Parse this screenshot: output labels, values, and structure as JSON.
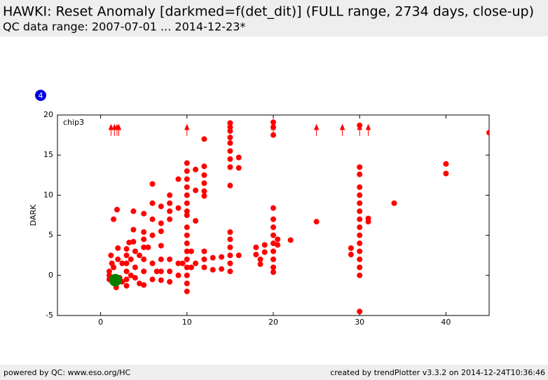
{
  "header": {
    "title": "HAWKI: Reset Anomaly [darkmed=f(det_dit)] (FULL range, 2734 days, close-up)",
    "subtitle": "QC data range: 2007-07-01 ... 2014-12-23*"
  },
  "badge": "4",
  "footer": {
    "left": "powered by QC: www.eso.org/HC",
    "right": "created by trendPlotter v3.3.2 on 2014-12-24T10:36:46"
  },
  "chart_data": {
    "type": "scatter",
    "ylabel": "DARK",
    "annotation": "chip3",
    "xlim": [
      -5,
      45
    ],
    "ylim": [
      -5,
      20
    ],
    "xticks": [
      0,
      10,
      20,
      30,
      40
    ],
    "yticks": [
      -5,
      0,
      5,
      10,
      15,
      20
    ],
    "grid": false,
    "series": [
      {
        "color": "#ff0000",
        "marker": "circle",
        "marker_radius": 4,
        "x": [
          1,
          1,
          1,
          1.2,
          1.3,
          1.5,
          1.5,
          1.8,
          1.9,
          2,
          2,
          2.2,
          2.5,
          2.5,
          3,
          3,
          3,
          3,
          3,
          3,
          3.3,
          3.5,
          3.5,
          3.8,
          3.8,
          3.8,
          4,
          4,
          4,
          4.5,
          4.5,
          5,
          5,
          5,
          5,
          5,
          5,
          5,
          5.5,
          6,
          6,
          6,
          6,
          6,
          6,
          6.5,
          7,
          7,
          7,
          7,
          7,
          7,
          7,
          8,
          8,
          8,
          8,
          8,
          8,
          8,
          9,
          9,
          9,
          9,
          9.5,
          10,
          10,
          10,
          10,
          10,
          10,
          10,
          10,
          10,
          10,
          10,
          10,
          10,
          10,
          10,
          10,
          10,
          10.5,
          10.5,
          11,
          11,
          11,
          11,
          12,
          12,
          12,
          12,
          12,
          12,
          12,
          12,
          12,
          13,
          13,
          14,
          14,
          15,
          15,
          15,
          15,
          15,
          15,
          15,
          15,
          15,
          15,
          15,
          15,
          15,
          15,
          15,
          16,
          16,
          16,
          18,
          18,
          18.5,
          18.5,
          19,
          19,
          20,
          20,
          20,
          20,
          20,
          20,
          20,
          20,
          20,
          20,
          20,
          20,
          20.5,
          20.5,
          22,
          25,
          29,
          29,
          30,
          30,
          30,
          30,
          30,
          30,
          30,
          30,
          30,
          30,
          30,
          30,
          30,
          30,
          30,
          30,
          31,
          31,
          34,
          40,
          40,
          45
        ],
        "values": [
          -0.5,
          0,
          0.5,
          2.5,
          1.5,
          7,
          1,
          -1.5,
          8.2,
          3.4,
          2,
          -0.3,
          1.5,
          -0.8,
          3.3,
          2.5,
          1.5,
          0.5,
          -0.5,
          -1.3,
          4.1,
          2,
          0,
          8,
          5.7,
          4.2,
          3,
          1,
          -0.3,
          2.5,
          -1,
          7.7,
          5.4,
          4.5,
          3.5,
          2,
          0.5,
          -1.2,
          3.5,
          11.4,
          9,
          7,
          5,
          1.5,
          -0.5,
          0.5,
          8.6,
          6.5,
          5.5,
          3.7,
          2,
          0.5,
          -0.6,
          10,
          9,
          8,
          7,
          2,
          0.5,
          -0.8,
          12,
          8.4,
          1.5,
          0,
          1.5,
          14,
          13,
          12,
          11,
          10,
          9,
          8,
          7.5,
          6,
          5,
          4,
          3,
          2,
          1,
          0,
          -1,
          -2,
          3,
          1,
          13.2,
          10.6,
          6.8,
          1.5,
          17,
          13.6,
          12.5,
          11.5,
          10.5,
          9.9,
          3,
          2,
          1,
          2.2,
          0.7,
          2.3,
          0.8,
          19,
          18.5,
          18,
          17.2,
          16.5,
          15.5,
          14.5,
          13.5,
          11.2,
          5.4,
          4.5,
          3.5,
          2.5,
          1.5,
          0.5,
          14.7,
          13.4,
          2.5,
          3.5,
          2.6,
          2,
          1.4,
          3.8,
          2.9,
          19.1,
          18.5,
          17.5,
          8.4,
          7,
          6,
          5,
          4,
          3,
          2,
          1,
          0.4,
          4.5,
          3.8,
          4.4,
          6.7,
          3.4,
          2.6,
          18.7,
          13.5,
          12.6,
          11,
          10,
          9,
          8,
          7,
          6,
          5,
          4,
          3,
          2,
          1,
          0,
          -4.5,
          7.1,
          6.7,
          9,
          13.9,
          12.7,
          17.8
        ]
      },
      {
        "color": "#008000",
        "marker": "circle",
        "marker_radius": 9,
        "x": [
          1.7
        ],
        "values": [
          -0.6
        ]
      },
      {
        "color": "#008000",
        "marker": "circle",
        "marker_radius": 4,
        "x": [
          1.5,
          1.9,
          2.1
        ],
        "values": [
          -0.5,
          -0.7,
          -0.6
        ]
      },
      {
        "color": "#ff0000",
        "marker": "arrow",
        "marker_radius": 4,
        "x": [
          1.2,
          1.6,
          1.9,
          2.1,
          10,
          20,
          25,
          28,
          30,
          31
        ],
        "values": [
          18,
          18,
          18,
          18,
          18,
          18,
          18,
          18,
          18,
          18
        ]
      }
    ]
  }
}
